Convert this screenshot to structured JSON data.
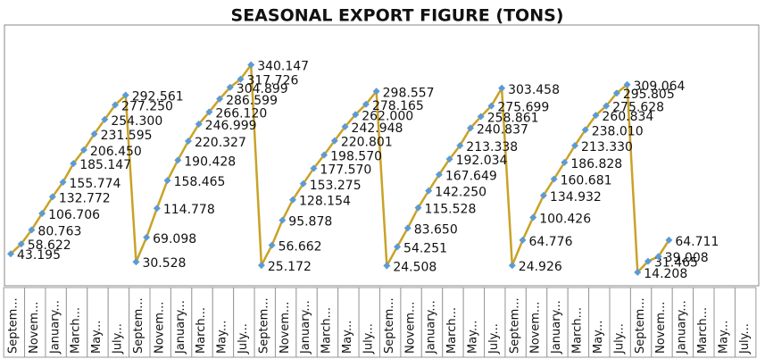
{
  "chart_data": {
    "type": "line",
    "title": "SEASONAL EXPORT FIGURE (TONS)",
    "categories": [
      "Septem...",
      null,
      "Novem...",
      null,
      "January...",
      null,
      "March...",
      null,
      "May...",
      null,
      "July...",
      null,
      "Septem...",
      null,
      "Novem...",
      null,
      "January...",
      null,
      "March...",
      null,
      "May...",
      null,
      "July...",
      null,
      "Septem...",
      null,
      "Novem...",
      null,
      "January...",
      null,
      "March...",
      null,
      "May...",
      null,
      "July...",
      null,
      "Septem...",
      null,
      "Novem...",
      null,
      "January...",
      null,
      "March...",
      null,
      "May...",
      null,
      "July...",
      null,
      "Septem...",
      null,
      "Novem...",
      null,
      "January...",
      null,
      "March...",
      null,
      "May...",
      null,
      "July...",
      null,
      "Septem...",
      null,
      "Novem...",
      null,
      "January...",
      null,
      "March...",
      null,
      "May...",
      null,
      "July...",
      null
    ],
    "series": [
      {
        "color": "#c9a227",
        "marker_color": "#5b9bd5",
        "values": [
          43.195,
          58.622,
          80.763,
          106.706,
          132.772,
          155.774,
          185.147,
          206.45,
          231.595,
          254.3,
          277.25,
          292.561,
          30.528,
          69.098,
          114.778,
          158.465,
          190.428,
          220.327,
          246.999,
          266.12,
          286.599,
          304.899,
          317.726,
          340.147,
          25.172,
          56.662,
          95.878,
          128.154,
          153.275,
          177.57,
          198.57,
          220.801,
          242.948,
          262,
          278.165,
          298.557,
          24.508,
          54.251,
          83.65,
          115.528,
          142.25,
          167.649,
          192.034,
          213.338,
          240.837,
          258.861,
          275.699,
          303.458,
          24.926,
          64.776,
          100.426,
          134.932,
          160.681,
          186.828,
          213.33,
          238.01,
          260.834,
          275.628,
          295.805,
          309.064,
          14.208,
          31.465,
          39.008,
          64.711,
          null,
          null,
          null,
          null,
          null,
          null,
          null,
          null
        ],
        "value_labels": [
          "43.195",
          "58.622",
          "80.763",
          "106.706",
          "132.772",
          "155.774",
          "185.147",
          "206.450",
          "231.595",
          "254.300",
          "277.250",
          "292.561",
          "30.528",
          "69.098",
          "114.778",
          "158.465",
          "190.428",
          "220.327",
          "246.999",
          "266.120",
          "286.599",
          "304.899",
          "317.726",
          "340.147",
          "25.172",
          "56.662",
          "95.878",
          "128.154",
          "153.275",
          "177.570",
          "198.570",
          "220.801",
          "242.948",
          "262.000",
          "278.165",
          "298.557",
          "24.508",
          "54.251",
          "83.650",
          "115.528",
          "142.250",
          "167.649",
          "192.034",
          "213.338",
          "240.837",
          "258.861",
          "275.699",
          "303.458",
          "24.926",
          "64.776",
          "100.426",
          "134.932",
          "160.681",
          "186.828",
          "213.330",
          "238.010",
          "260.834",
          "275.628",
          "295.805",
          "309.064",
          "14.208",
          "31.465",
          "39.008",
          "64.711",
          null,
          null,
          null,
          null,
          null,
          null,
          null,
          null
        ]
      }
    ],
    "ylim": [
      0,
      400
    ]
  }
}
